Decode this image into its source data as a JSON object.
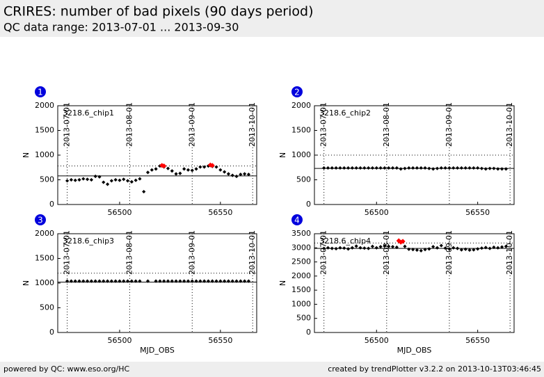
{
  "header": {
    "title": "CRIRES: number of bad pixels (90 days period)",
    "subtitle": "QC data range: 2013-07-01 ... 2013-09-30"
  },
  "footer": {
    "left": "powered by QC: www.eso.org/HC",
    "right": "created by trendPlotter v3.2.2 on 2013-10-13T03:46:45"
  },
  "chart_data": [
    {
      "type": "scatter",
      "number": "1",
      "label": "3218.6_chip1",
      "ylabel": "N",
      "xlim": [
        56469.3,
        56568
      ],
      "ylim": [
        0,
        2000
      ],
      "xticks": [
        56500,
        56550
      ],
      "yticks": [
        0,
        500,
        1000,
        1500,
        2000
      ],
      "date_ticks": [
        {
          "value": 56474,
          "label": "2013-07-01"
        },
        {
          "value": 56505,
          "label": "2013-08-01"
        },
        {
          "value": 56536,
          "label": "2013-09-01"
        },
        {
          "value": 56566,
          "label": "2013-10-01"
        }
      ],
      "hlines": [
        {
          "value": 580,
          "style": "solid"
        },
        {
          "value": 780,
          "style": "dotted"
        }
      ],
      "series": [
        {
          "color": "#000000",
          "x": [
            56474,
            56476,
            56478,
            56480,
            56482,
            56484,
            56486,
            56488,
            56490,
            56492,
            56494,
            56496,
            56498,
            56500,
            56502,
            56504,
            56506,
            56508,
            56510,
            56512,
            56514,
            56516,
            56518,
            56520,
            56522,
            56524,
            56526,
            56528,
            56530,
            56532,
            56534,
            56536,
            56538,
            56540,
            56542,
            56544,
            56546,
            56548,
            56550,
            56552,
            56554,
            56556,
            56558,
            56560,
            56562,
            56564
          ],
          "values": [
            480,
            500,
            490,
            500,
            520,
            510,
            500,
            570,
            560,
            450,
            410,
            480,
            500,
            490,
            510,
            480,
            460,
            490,
            520,
            260,
            650,
            700,
            720,
            780,
            760,
            730,
            680,
            620,
            630,
            720,
            700,
            690,
            720,
            760,
            760,
            780,
            770,
            760,
            700,
            660,
            620,
            590,
            570,
            610,
            620,
            610
          ]
        },
        {
          "color": "#ff0000",
          "x": [
            56521,
            56522,
            56545,
            56546
          ],
          "values": [
            790,
            780,
            800,
            790
          ]
        }
      ]
    },
    {
      "type": "scatter",
      "number": "2",
      "label": "3218.6_chip2",
      "ylabel": "N",
      "xlim": [
        56469.3,
        56568
      ],
      "ylim": [
        0,
        2000
      ],
      "xticks": [
        56500,
        56550
      ],
      "yticks": [
        0,
        500,
        1000,
        1500,
        2000
      ],
      "date_ticks": [
        {
          "value": 56474,
          "label": "2013-07-01"
        },
        {
          "value": 56505,
          "label": "2013-08-01"
        },
        {
          "value": 56536,
          "label": "2013-09-01"
        },
        {
          "value": 56566,
          "label": "2013-10-01"
        }
      ],
      "hlines": [
        {
          "value": 730,
          "style": "solid"
        },
        {
          "value": 1000,
          "style": "dotted"
        }
      ],
      "series": [
        {
          "color": "#000000",
          "x": [
            56474,
            56476,
            56478,
            56480,
            56482,
            56484,
            56486,
            56488,
            56490,
            56492,
            56494,
            56496,
            56498,
            56500,
            56502,
            56504,
            56506,
            56508,
            56510,
            56512,
            56514,
            56516,
            56518,
            56520,
            56522,
            56524,
            56526,
            56528,
            56530,
            56532,
            56534,
            56536,
            56538,
            56540,
            56542,
            56544,
            56546,
            56548,
            56550,
            56552,
            56554,
            56556,
            56558,
            56560,
            56562,
            56564
          ],
          "values": [
            740,
            740,
            740,
            740,
            740,
            740,
            740,
            740,
            740,
            740,
            740,
            740,
            740,
            740,
            740,
            740,
            740,
            740,
            740,
            720,
            730,
            740,
            740,
            740,
            740,
            740,
            730,
            720,
            730,
            740,
            740,
            740,
            740,
            740,
            740,
            740,
            740,
            740,
            740,
            730,
            720,
            730,
            730,
            720,
            720,
            720
          ]
        }
      ]
    },
    {
      "type": "scatter",
      "number": "3",
      "label": "3218.6_chip3",
      "ylabel": "N",
      "xlabel": "MJD_OBS",
      "xlim": [
        56469.3,
        56568
      ],
      "ylim": [
        0,
        2000
      ],
      "xticks": [
        56500,
        56550
      ],
      "yticks": [
        0,
        500,
        1000,
        1500,
        2000
      ],
      "date_ticks": [
        {
          "value": 56474,
          "label": "2013-07-01"
        },
        {
          "value": 56505,
          "label": "2013-08-01"
        },
        {
          "value": 56536,
          "label": "2013-09-01"
        },
        {
          "value": 56566,
          "label": "2013-10-01"
        }
      ],
      "hlines": [
        {
          "value": 1020,
          "style": "solid"
        },
        {
          "value": 1200,
          "style": "dotted"
        }
      ],
      "series": [
        {
          "color": "#000000",
          "x": [
            56474,
            56476,
            56478,
            56480,
            56482,
            56484,
            56486,
            56488,
            56490,
            56492,
            56494,
            56496,
            56498,
            56500,
            56502,
            56504,
            56506,
            56508,
            56510,
            56514,
            56518,
            56520,
            56522,
            56524,
            56526,
            56528,
            56530,
            56532,
            56534,
            56536,
            56538,
            56540,
            56542,
            56544,
            56546,
            56548,
            56550,
            56552,
            56554,
            56556,
            56558,
            56560,
            56562,
            56564
          ],
          "values": [
            1040,
            1040,
            1040,
            1040,
            1040,
            1040,
            1040,
            1040,
            1040,
            1040,
            1040,
            1040,
            1040,
            1040,
            1040,
            1040,
            1040,
            1040,
            1040,
            1040,
            1040,
            1040,
            1040,
            1040,
            1040,
            1040,
            1040,
            1040,
            1040,
            1040,
            1040,
            1040,
            1040,
            1040,
            1040,
            1040,
            1040,
            1040,
            1040,
            1040,
            1040,
            1040,
            1040,
            1040
          ]
        }
      ]
    },
    {
      "type": "scatter",
      "number": "4",
      "label": "3218.6_chip4",
      "ylabel": "N",
      "xlabel": "MJD_OBS",
      "xlim": [
        56469.3,
        56568
      ],
      "ylim": [
        0,
        3500
      ],
      "xticks": [
        56500,
        56550
      ],
      "yticks": [
        0,
        500,
        1000,
        1500,
        2000,
        2500,
        3000,
        3500
      ],
      "date_ticks": [
        {
          "value": 56474,
          "label": "2013-07-01"
        },
        {
          "value": 56505,
          "label": "2013-08-01"
        },
        {
          "value": 56536,
          "label": "2013-09-01"
        },
        {
          "value": 56566,
          "label": "2013-10-01"
        }
      ],
      "hlines": [
        {
          "value": 2980,
          "style": "solid"
        },
        {
          "value": 3170,
          "style": "dotted"
        }
      ],
      "series": [
        {
          "color": "#000000",
          "x": [
            56474,
            56476,
            56478,
            56480,
            56482,
            56484,
            56486,
            56488,
            56490,
            56492,
            56494,
            56496,
            56498,
            56500,
            56502,
            56504,
            56506,
            56508,
            56510,
            56514,
            56516,
            56518,
            56520,
            56522,
            56524,
            56526,
            56528,
            56530,
            56532,
            56534,
            56536,
            56538,
            56540,
            56542,
            56544,
            56546,
            56548,
            56550,
            56552,
            56554,
            56556,
            56558,
            56560,
            56562,
            56564
          ],
          "values": [
            2980,
            3000,
            2980,
            2970,
            3000,
            2990,
            2960,
            3000,
            3060,
            3000,
            2990,
            2980,
            3050,
            3000,
            3040,
            3060,
            3050,
            3040,
            3020,
            3050,
            2950,
            2940,
            2920,
            2900,
            2940,
            2960,
            3040,
            3000,
            3080,
            2990,
            2960,
            3000,
            2980,
            2930,
            2950,
            2920,
            2930,
            2960,
            2990,
            3010,
            2980,
            3020,
            3000,
            3030,
            3050
          ]
        },
        {
          "color": "#ff0000",
          "x": [
            56511,
            56512,
            56513
          ],
          "values": [
            3250,
            3200,
            3230
          ]
        }
      ]
    }
  ]
}
